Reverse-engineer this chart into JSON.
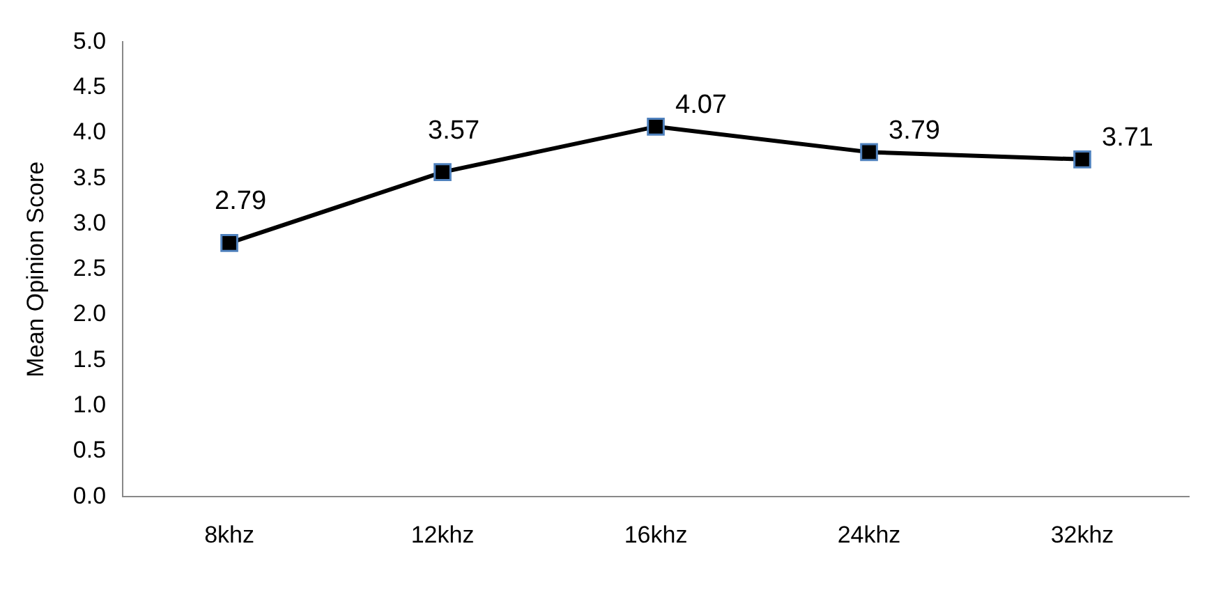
{
  "chart_data": {
    "type": "line",
    "ylabel": "Mean Opinion Score",
    "categories": [
      "8khz",
      "12khz",
      "16khz",
      "24khz",
      "32khz"
    ],
    "series": [
      {
        "color": "#000000",
        "values": [
          2.79,
          3.57,
          4.07,
          3.79,
          3.71
        ]
      }
    ],
    "ylim": [
      0,
      5
    ],
    "yticks": [
      {
        "value": 0,
        "label": "0.0"
      },
      {
        "value": 0.5,
        "label": "0.5"
      },
      {
        "value": 1,
        "label": "1.0"
      },
      {
        "value": 1.5,
        "label": "1.5"
      },
      {
        "value": 2,
        "label": "2.0"
      },
      {
        "value": 2.5,
        "label": "2.5"
      },
      {
        "value": 3,
        "label": "3.0"
      },
      {
        "value": 3.5,
        "label": "3.5"
      },
      {
        "value": 4,
        "label": "4.0"
      },
      {
        "value": 4.5,
        "label": "4.5"
      },
      {
        "value": 5,
        "label": "5.0"
      }
    ],
    "grid": false,
    "legend": false,
    "marker": "square",
    "line_style": "solid",
    "data_labels": true
  }
}
